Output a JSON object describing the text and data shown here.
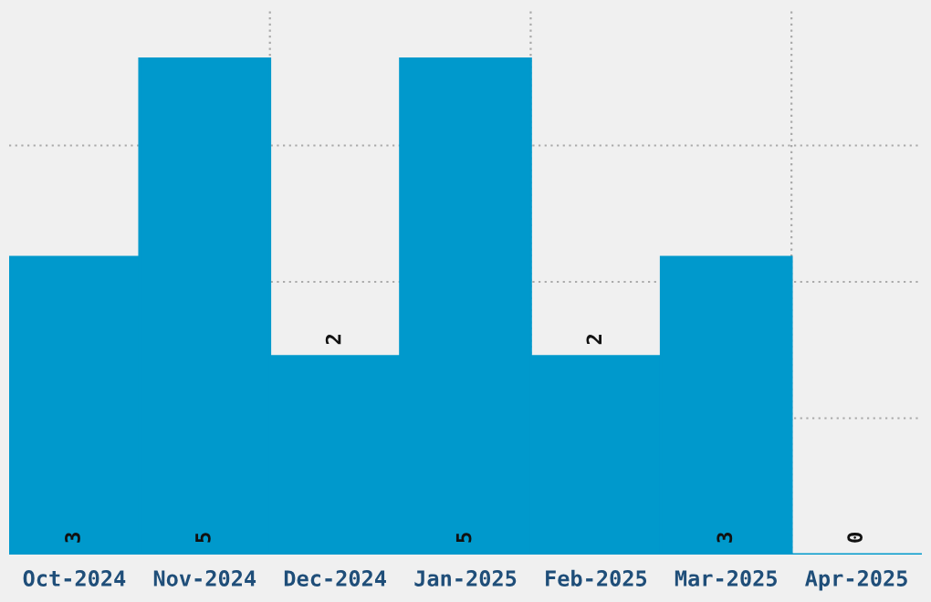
{
  "chart_data": {
    "type": "bar",
    "categories": [
      "Oct-2024",
      "Nov-2024",
      "Dec-2024",
      "Jan-2025",
      "Feb-2025",
      "Mar-2025",
      "Apr-2025"
    ],
    "values": [
      3,
      5,
      2,
      5,
      2,
      3,
      0
    ],
    "color": "#0099cc",
    "ylim": [
      0,
      5.5
    ],
    "yticks": [
      {
        "value": 1.375,
        "label": null
      },
      {
        "value": 2.75,
        "label": null
      },
      {
        "value": 4.125,
        "label": null
      }
    ],
    "tick_labels": "x",
    "grid": true,
    "data_labels": true
  }
}
